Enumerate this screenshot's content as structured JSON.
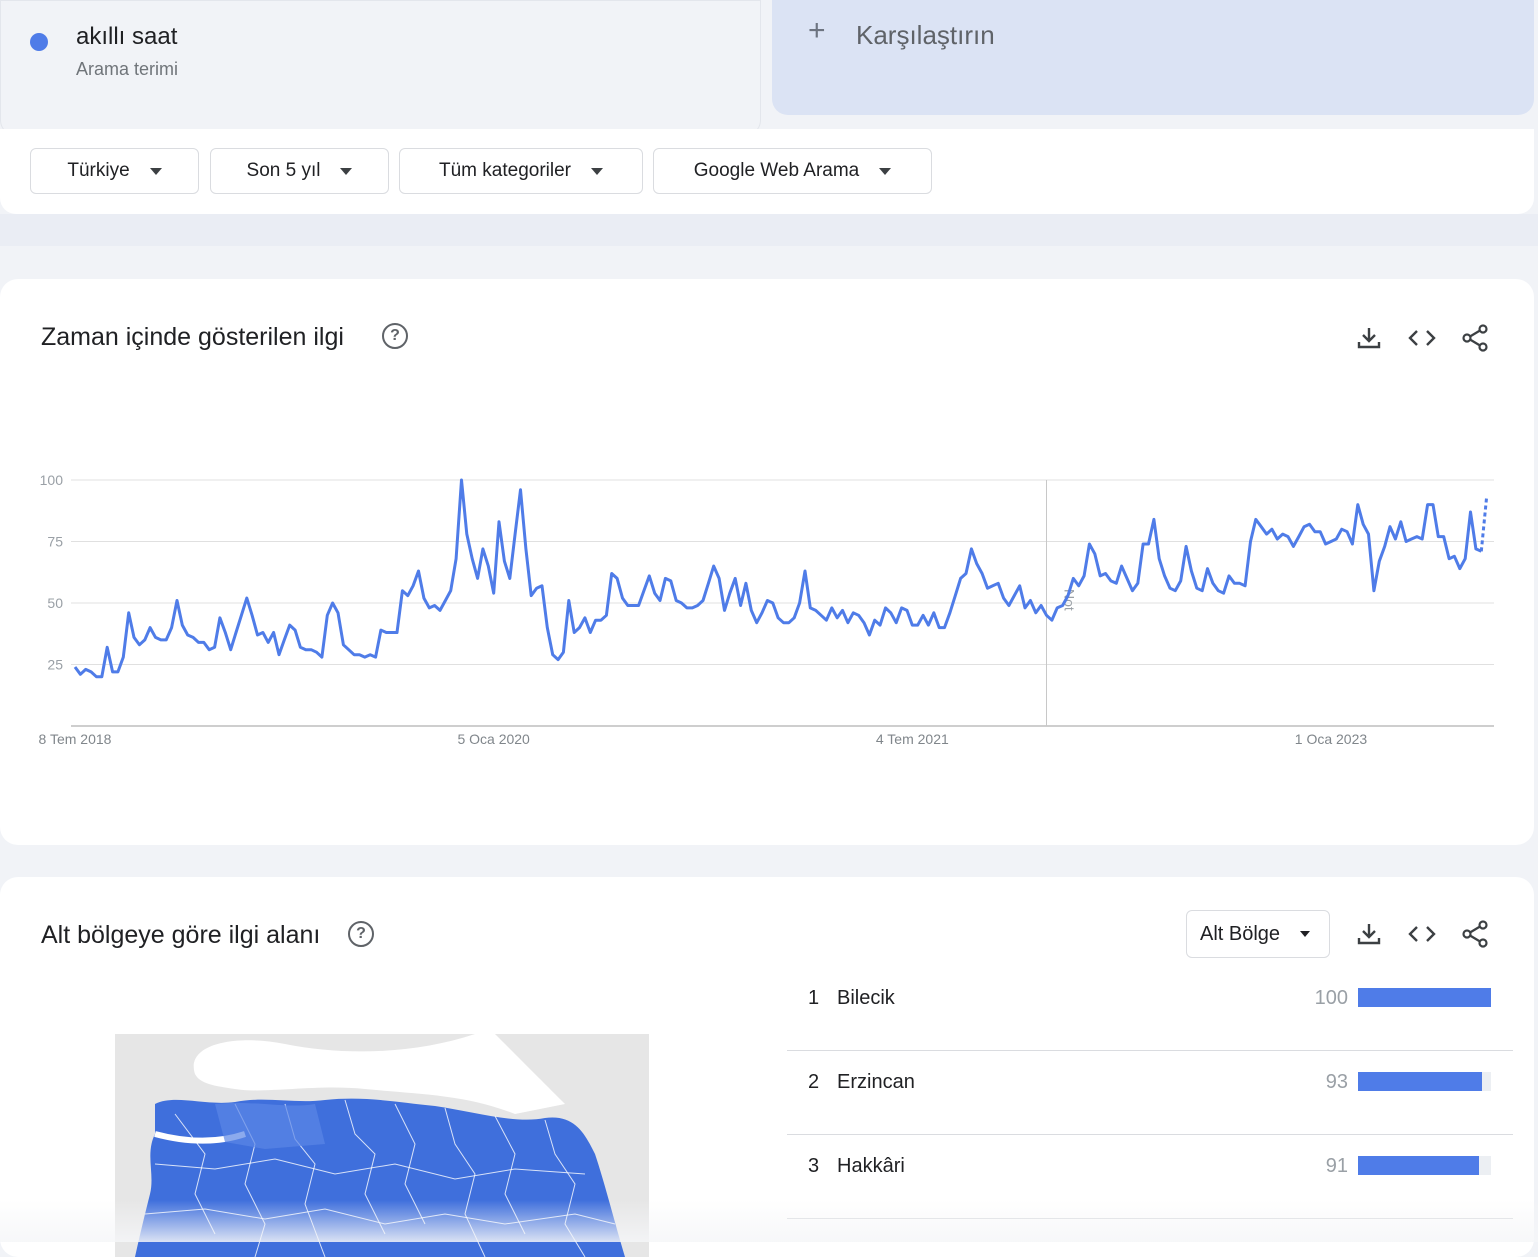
{
  "search_term": {
    "name": "akıllı saat",
    "type": "Arama terimi",
    "color": "#4f7ce8"
  },
  "compare": {
    "label": "Karşılaştırın"
  },
  "filters": [
    {
      "label": "Türkiye"
    },
    {
      "label": "Son 5 yıl"
    },
    {
      "label": "Tüm kategoriler"
    },
    {
      "label": "Google Web Arama"
    }
  ],
  "timeline": {
    "title": "Zaman içinde gösterilen ilgi",
    "icons": [
      "download-icon",
      "embed-icon",
      "share-icon"
    ],
    "note_label": "Not"
  },
  "chart_data": {
    "type": "line",
    "title": "",
    "xlabel": "",
    "ylabel": "",
    "ylim": [
      0,
      100
    ],
    "y_ticks": [
      "100",
      "75",
      "50",
      "25"
    ],
    "x_ticks": [
      "8 Tem 2018",
      "5 Oca 2020",
      "4 Tem 2021",
      "1 Oca 2023"
    ],
    "grid": true,
    "series": [
      {
        "color": "#4f7ce8",
        "values": [
          24,
          21,
          23,
          22,
          20,
          20,
          32,
          22,
          22,
          28,
          46,
          36,
          33,
          35,
          40,
          36,
          35,
          35,
          40,
          51,
          41,
          37,
          36,
          34,
          34,
          31,
          32,
          44,
          38,
          31,
          38,
          45,
          52,
          45,
          37,
          38,
          34,
          38,
          29,
          35,
          41,
          39,
          32,
          31,
          31,
          30,
          28,
          45,
          50,
          46,
          33,
          31,
          29,
          29,
          28,
          29,
          28,
          39,
          38,
          38,
          38,
          55,
          53,
          57,
          63,
          52,
          48,
          49,
          47,
          51,
          55,
          68,
          100,
          78,
          68,
          60,
          72,
          65,
          54,
          83,
          67,
          60,
          78,
          96,
          72,
          53,
          56,
          57,
          40,
          29,
          27,
          30,
          51,
          38,
          40,
          44,
          38,
          43,
          43,
          45,
          62,
          60,
          52,
          49,
          49,
          49,
          55,
          61,
          54,
          51,
          60,
          59,
          51,
          50,
          48,
          48,
          49,
          51,
          58,
          65,
          60,
          47,
          54,
          60,
          49,
          58,
          47,
          42,
          46,
          51,
          50,
          44,
          42,
          42,
          44,
          50,
          63,
          48,
          47,
          45,
          43,
          48,
          44,
          47,
          42,
          46,
          45,
          42,
          37,
          43,
          41,
          48,
          46,
          42,
          48,
          47,
          41,
          41,
          45,
          41,
          46,
          40,
          40,
          46,
          53,
          60,
          62,
          72,
          66,
          62,
          56,
          57,
          58,
          52,
          49,
          53,
          57,
          48,
          51,
          46,
          49,
          45,
          43,
          48,
          49,
          53,
          60,
          57,
          61,
          74,
          70,
          61,
          62,
          59,
          58,
          65,
          60,
          55,
          58,
          74,
          74,
          84,
          68,
          61,
          56,
          55,
          59,
          73,
          63,
          56,
          55,
          64,
          58,
          55,
          54,
          61,
          58,
          58,
          57,
          75,
          84,
          81,
          78,
          80,
          76,
          78,
          77,
          73,
          77,
          81,
          82,
          79,
          79,
          74,
          75,
          76,
          80,
          79,
          74,
          90,
          82,
          78,
          55,
          67,
          73,
          81,
          76,
          83,
          75,
          76,
          77,
          76,
          90,
          90,
          77,
          77,
          68,
          69,
          64,
          68,
          87,
          72,
          71
        ],
        "partial_values": [
          71,
          93
        ]
      }
    ]
  },
  "region": {
    "title": "Alt bölgeye göre ilgi alanı",
    "select_label": "Alt Bölge",
    "icons": [
      "download-icon",
      "embed-icon",
      "share-icon"
    ],
    "rankings": [
      {
        "rank": "1",
        "name": "Bilecik",
        "value": 100
      },
      {
        "rank": "2",
        "name": "Erzincan",
        "value": 93
      },
      {
        "rank": "3",
        "name": "Hakkâri",
        "value": 91
      }
    ],
    "map_colors": {
      "land": "#3f6fdc",
      "land_light": "#5b86e6",
      "sea": "#ffffff",
      "outside": "#e6e6e6"
    }
  }
}
